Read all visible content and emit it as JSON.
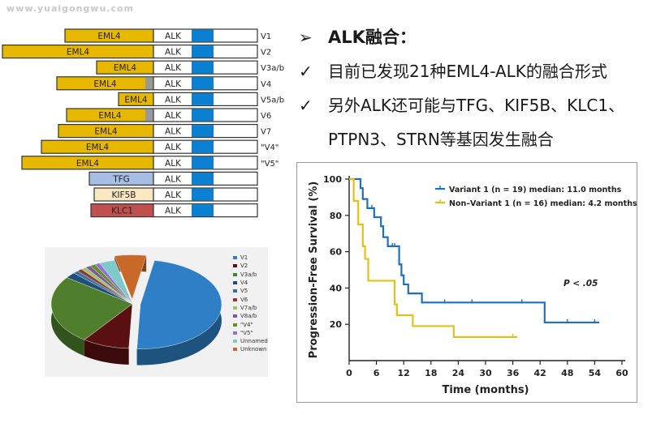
{
  "watermark": "www.yuaigongwu.com",
  "fusion": {
    "rows": [
      {
        "partner": "EML4",
        "alk": "ALK",
        "variant": "V1",
        "start": 80,
        "gray": false,
        "color": "#e6b800"
      },
      {
        "partner": "EML4",
        "alk": "ALK",
        "variant": "V2",
        "start": 3,
        "gray": false,
        "color": "#e6b800"
      },
      {
        "partner": "EML4",
        "alk": "ALK",
        "variant": "V3a/b",
        "start": 119,
        "gray": false,
        "color": "#e6b800"
      },
      {
        "partner": "EML4",
        "alk": "ALK",
        "variant": "V4",
        "start": 70,
        "gray": true,
        "color": "#e6b800"
      },
      {
        "partner": "EML4",
        "alk": "ALK",
        "variant": "V5a/b",
        "start": 146,
        "gray": false,
        "color": "#e6b800"
      },
      {
        "partner": "EML4",
        "alk": "ALK",
        "variant": "V6",
        "start": 82,
        "gray": true,
        "color": "#e6b800"
      },
      {
        "partner": "EML4",
        "alk": "ALK",
        "variant": "V7",
        "start": 72,
        "gray": false,
        "color": "#e6b800"
      },
      {
        "partner": "EML4",
        "alk": "ALK",
        "variant": "\"V4\"",
        "start": 51,
        "gray": false,
        "color": "#e6b800"
      },
      {
        "partner": "EML4",
        "alk": "ALK",
        "variant": "\"V5\"",
        "start": 27,
        "gray": false,
        "color": "#e6b800"
      },
      {
        "partner": "TFG",
        "alk": "ALK",
        "variant": "",
        "start": 110,
        "gray": false,
        "color": "#a7bde4"
      },
      {
        "partner": "KIF5B",
        "alk": "ALK",
        "variant": "",
        "start": 116,
        "gray": false,
        "color": "#f9e7c0"
      },
      {
        "partner": "KLC1",
        "alk": "ALK",
        "variant": "",
        "start": 112,
        "gray": false,
        "color": "#c0504d"
      }
    ]
  },
  "pie": {
    "legend": [
      {
        "label": "V1",
        "color": "#2e7fc5",
        "value": 46
      },
      {
        "label": "V2",
        "color": "#5a1010",
        "value": 9
      },
      {
        "label": "V3a/b",
        "color": "#4f7f2c",
        "value": 24
      },
      {
        "label": "V4",
        "color": "#1f4e79",
        "value": 2
      },
      {
        "label": "V5",
        "color": "#3a6fa0",
        "value": 1
      },
      {
        "label": "V6",
        "color": "#8b3a3a",
        "value": 1
      },
      {
        "label": "V7a/b",
        "color": "#a0c070",
        "value": 1
      },
      {
        "label": "V8a/b",
        "color": "#7a5a9a",
        "value": 1
      },
      {
        "label": "\"V4\"",
        "color": "#6b8e23",
        "value": 1
      },
      {
        "label": "\"V5\"",
        "color": "#9370db",
        "value": 1
      },
      {
        "label": "Unnamed",
        "color": "#7fc9c9",
        "value": 3
      },
      {
        "label": "Unknown",
        "color": "#c8692a",
        "value": 6
      }
    ]
  },
  "bullets": {
    "title_marker": "➢",
    "title": "ALK融合：",
    "check_marker": "✓",
    "line1": "目前已发现21种EML4-ALK的融合形式",
    "line2": "另外ALK还可能与TFG、KIF5B、KLC1、",
    "line3": "PTPN3、STRN等基因发生融合"
  },
  "chart_data": {
    "type": "line",
    "title": "",
    "xlabel": "Time (months)",
    "ylabel": "Progression-Free Survival (%)",
    "xlim": [
      0,
      60
    ],
    "ylim": [
      0,
      100
    ],
    "xticks": [
      0,
      6,
      12,
      18,
      24,
      30,
      36,
      42,
      48,
      54,
      60
    ],
    "yticks": [
      20,
      40,
      60,
      80,
      100
    ],
    "legend_position": "top-right",
    "annotation": "P < .05",
    "series": [
      {
        "name": "Variant 1 (n = 19) median: 11.0 months",
        "color": "#1f6fbf",
        "points": [
          [
            0,
            100
          ],
          [
            2.5,
            100
          ],
          [
            2.5,
            95
          ],
          [
            3,
            95
          ],
          [
            3,
            89
          ],
          [
            4,
            89
          ],
          [
            4,
            84
          ],
          [
            5.5,
            84
          ],
          [
            5.5,
            79
          ],
          [
            7,
            79
          ],
          [
            7,
            74
          ],
          [
            7.5,
            74
          ],
          [
            7.5,
            68
          ],
          [
            8.5,
            68
          ],
          [
            8.5,
            63
          ],
          [
            11,
            63
          ],
          [
            11,
            53
          ],
          [
            11.5,
            53
          ],
          [
            11.5,
            47
          ],
          [
            12,
            47
          ],
          [
            12,
            42
          ],
          [
            13,
            42
          ],
          [
            13,
            37
          ],
          [
            16,
            37
          ],
          [
            16,
            32
          ],
          [
            43,
            32
          ],
          [
            43,
            21
          ],
          [
            55,
            21
          ]
        ],
        "censor_x": [
          5,
          9.5,
          10,
          21,
          27,
          38,
          48,
          54
        ]
      },
      {
        "name": "Non–Variant 1 (n = 16) median: 4.2 months",
        "color": "#e6c01a",
        "points": [
          [
            0,
            100
          ],
          [
            1,
            100
          ],
          [
            1,
            88
          ],
          [
            2,
            88
          ],
          [
            2,
            75
          ],
          [
            3,
            75
          ],
          [
            3,
            63
          ],
          [
            3.5,
            63
          ],
          [
            3.5,
            56
          ],
          [
            4.2,
            56
          ],
          [
            4.2,
            44
          ],
          [
            10,
            44
          ],
          [
            10,
            31
          ],
          [
            10.5,
            31
          ],
          [
            10.5,
            25
          ],
          [
            14,
            25
          ],
          [
            14,
            19
          ],
          [
            23,
            19
          ],
          [
            23,
            13
          ],
          [
            37,
            13
          ]
        ],
        "censor_x": [
          36
        ]
      }
    ]
  }
}
